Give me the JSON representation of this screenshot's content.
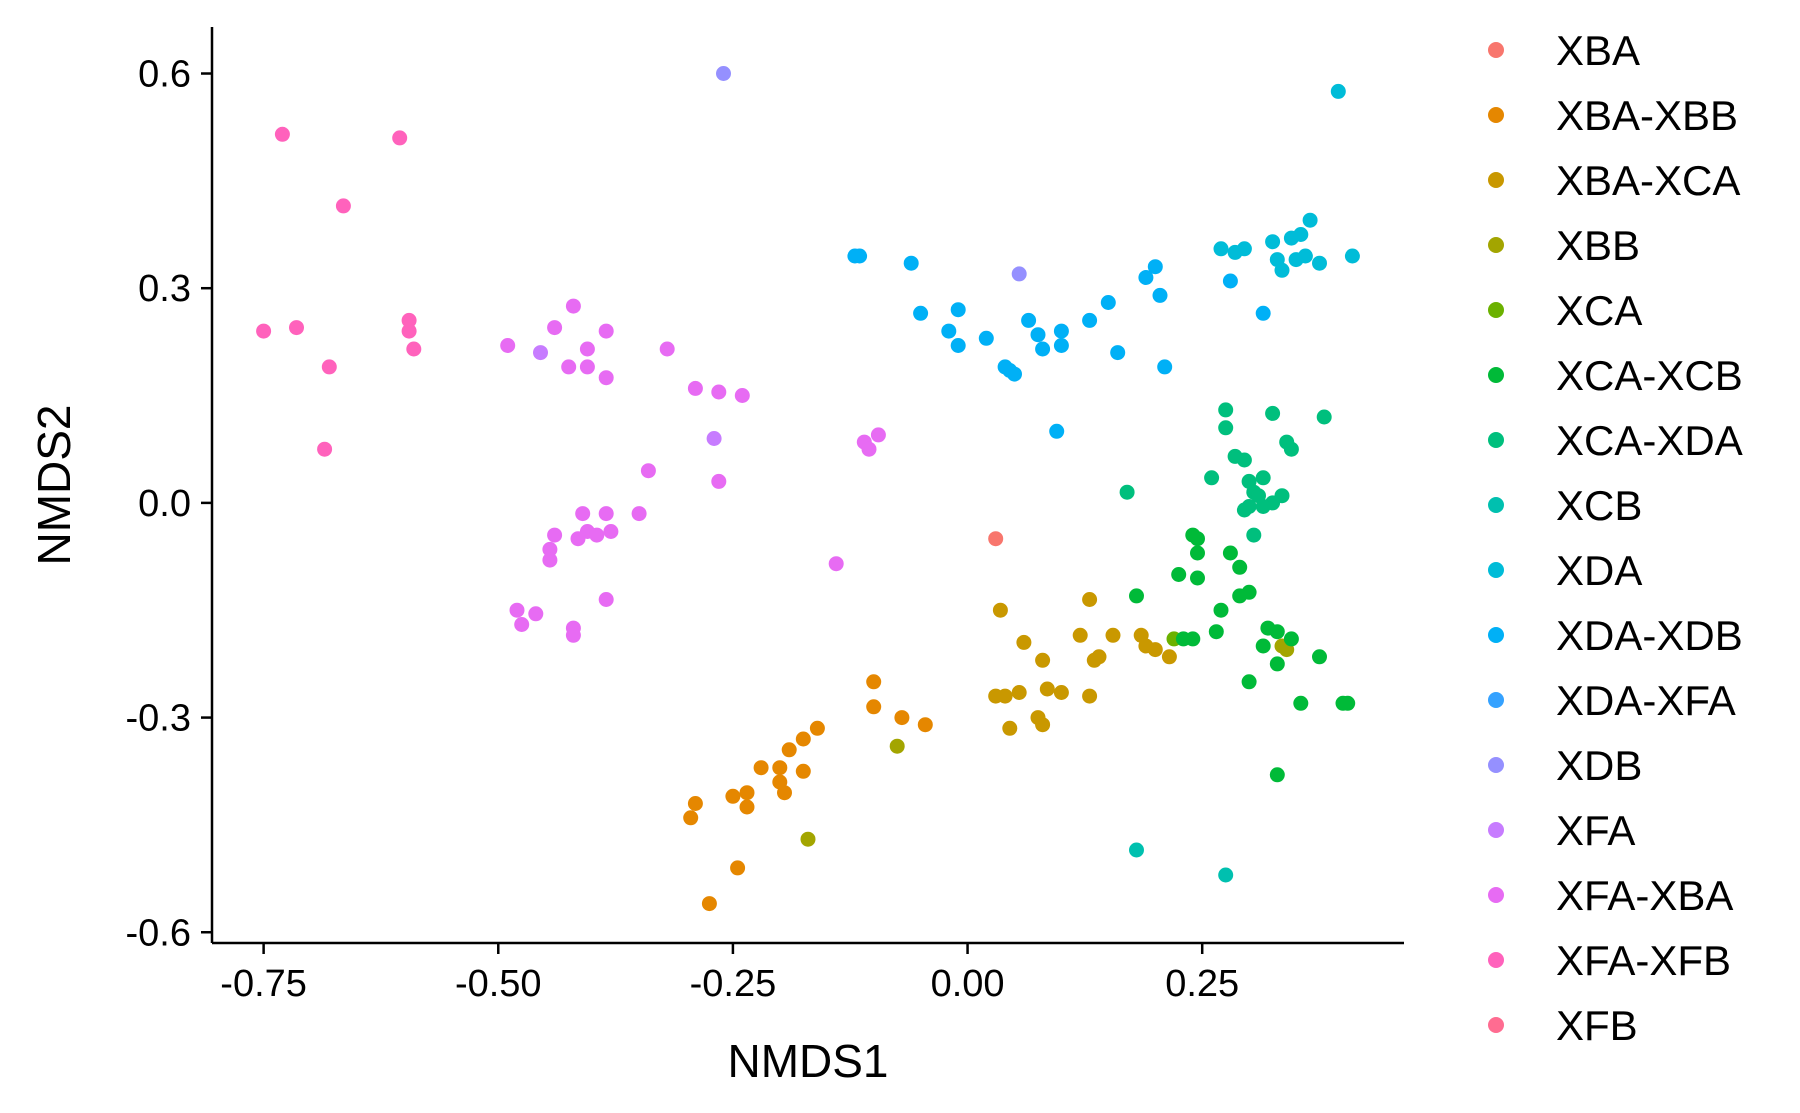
{
  "chart_data": {
    "type": "scatter",
    "title": "",
    "xlabel": "NMDS1",
    "ylabel": "NMDS2",
    "xlim": [
      -0.805,
      0.465
    ],
    "ylim": [
      -0.615,
      0.665
    ],
    "xticks": [
      -0.75,
      -0.5,
      -0.25,
      0.0,
      0.25
    ],
    "xtick_labels": [
      "-0.75",
      "-0.50",
      "-0.25",
      "0.00",
      "0.25"
    ],
    "yticks": [
      -0.6,
      -0.3,
      0.0,
      0.3,
      0.6
    ],
    "ytick_labels": [
      "-0.6",
      "-0.3",
      "0.0",
      "0.3",
      "0.6"
    ],
    "grid": false,
    "legend_position": "right",
    "series": [
      {
        "name": "XBA",
        "color": "#F8766D",
        "points": [
          [
            0.03,
            -0.05
          ]
        ]
      },
      {
        "name": "XBA-XBB",
        "color": "#E58700",
        "points": [
          [
            -0.1,
            -0.25
          ],
          [
            -0.1,
            -0.285
          ],
          [
            -0.07,
            -0.3
          ],
          [
            -0.045,
            -0.31
          ],
          [
            -0.16,
            -0.315
          ],
          [
            -0.175,
            -0.33
          ],
          [
            -0.19,
            -0.345
          ],
          [
            -0.2,
            -0.37
          ],
          [
            -0.22,
            -0.37
          ],
          [
            -0.175,
            -0.375
          ],
          [
            -0.2,
            -0.39
          ],
          [
            -0.235,
            -0.405
          ],
          [
            -0.195,
            -0.405
          ],
          [
            -0.25,
            -0.41
          ],
          [
            -0.29,
            -0.42
          ],
          [
            -0.235,
            -0.425
          ],
          [
            -0.295,
            -0.44
          ],
          [
            -0.245,
            -0.51
          ],
          [
            -0.275,
            -0.56
          ]
        ]
      },
      {
        "name": "XBA-XCA",
        "color": "#C99800",
        "points": [
          [
            0.035,
            -0.15
          ],
          [
            0.13,
            -0.135
          ],
          [
            0.06,
            -0.195
          ],
          [
            0.12,
            -0.185
          ],
          [
            0.155,
            -0.185
          ],
          [
            0.185,
            -0.185
          ],
          [
            0.2,
            -0.205
          ],
          [
            0.19,
            -0.2
          ],
          [
            0.14,
            -0.215
          ],
          [
            0.215,
            -0.215
          ],
          [
            0.08,
            -0.22
          ],
          [
            0.135,
            -0.22
          ],
          [
            0.085,
            -0.26
          ],
          [
            0.1,
            -0.265
          ],
          [
            0.03,
            -0.27
          ],
          [
            0.04,
            -0.27
          ],
          [
            0.055,
            -0.265
          ],
          [
            0.13,
            -0.27
          ],
          [
            0.075,
            -0.3
          ],
          [
            0.08,
            -0.31
          ],
          [
            0.045,
            -0.315
          ]
        ]
      },
      {
        "name": "XBB",
        "color": "#A3A500",
        "points": [
          [
            -0.075,
            -0.34
          ],
          [
            -0.17,
            -0.47
          ],
          [
            0.335,
            -0.2
          ],
          [
            0.34,
            -0.205
          ]
        ]
      },
      {
        "name": "XCA",
        "color": "#6BB100",
        "points": [
          [
            0.22,
            -0.19
          ]
        ]
      },
      {
        "name": "XCA-XCB",
        "color": "#00BA38",
        "points": [
          [
            0.24,
            -0.045
          ],
          [
            0.245,
            -0.07
          ],
          [
            0.245,
            -0.05
          ],
          [
            0.28,
            -0.07
          ],
          [
            0.225,
            -0.1
          ],
          [
            0.245,
            -0.105
          ],
          [
            0.29,
            -0.09
          ],
          [
            0.3,
            -0.125
          ],
          [
            0.29,
            -0.13
          ],
          [
            0.18,
            -0.13
          ],
          [
            0.27,
            -0.15
          ],
          [
            0.32,
            -0.175
          ],
          [
            0.33,
            -0.18
          ],
          [
            0.265,
            -0.18
          ],
          [
            0.24,
            -0.19
          ],
          [
            0.23,
            -0.19
          ],
          [
            0.345,
            -0.19
          ],
          [
            0.315,
            -0.2
          ],
          [
            0.375,
            -0.215
          ],
          [
            0.33,
            -0.225
          ],
          [
            0.3,
            -0.25
          ],
          [
            0.355,
            -0.28
          ],
          [
            0.4,
            -0.28
          ],
          [
            0.405,
            -0.28
          ],
          [
            0.33,
            -0.38
          ]
        ]
      },
      {
        "name": "XCA-XDA",
        "color": "#00BF7D",
        "points": [
          [
            0.275,
            0.13
          ],
          [
            0.325,
            0.125
          ],
          [
            0.38,
            0.12
          ],
          [
            0.275,
            0.105
          ],
          [
            0.34,
            0.085
          ],
          [
            0.345,
            0.075
          ],
          [
            0.285,
            0.065
          ],
          [
            0.295,
            0.06
          ],
          [
            0.26,
            0.035
          ],
          [
            0.315,
            0.035
          ],
          [
            0.3,
            0.03
          ],
          [
            0.17,
            0.015
          ],
          [
            0.305,
            0.015
          ],
          [
            0.31,
            0.01
          ],
          [
            0.335,
            0.01
          ],
          [
            0.325,
            0.0
          ],
          [
            0.3,
            -0.005
          ],
          [
            0.295,
            -0.01
          ],
          [
            0.315,
            -0.005
          ],
          [
            0.305,
            -0.045
          ]
        ]
      },
      {
        "name": "XCB",
        "color": "#00C0AF",
        "points": [
          [
            0.18,
            -0.485
          ],
          [
            0.275,
            -0.52
          ]
        ]
      },
      {
        "name": "XDA",
        "color": "#00BCD8",
        "points": [
          [
            0.27,
            0.355
          ],
          [
            0.285,
            0.35
          ],
          [
            0.295,
            0.355
          ],
          [
            0.325,
            0.365
          ],
          [
            0.345,
            0.37
          ],
          [
            0.355,
            0.375
          ],
          [
            0.365,
            0.395
          ],
          [
            0.33,
            0.34
          ],
          [
            0.35,
            0.34
          ],
          [
            0.36,
            0.345
          ],
          [
            0.375,
            0.335
          ],
          [
            0.335,
            0.325
          ],
          [
            0.41,
            0.345
          ],
          [
            0.395,
            0.575
          ]
        ]
      },
      {
        "name": "XDA-XDB",
        "color": "#00B0F6",
        "points": [
          [
            -0.12,
            0.345
          ],
          [
            -0.115,
            0.345
          ],
          [
            -0.06,
            0.335
          ],
          [
            0.2,
            0.33
          ],
          [
            0.19,
            0.315
          ],
          [
            0.28,
            0.31
          ],
          [
            -0.05,
            0.265
          ],
          [
            -0.01,
            0.27
          ],
          [
            0.065,
            0.255
          ],
          [
            0.205,
            0.29
          ],
          [
            0.15,
            0.28
          ],
          [
            0.13,
            0.255
          ],
          [
            0.315,
            0.265
          ],
          [
            0.075,
            0.235
          ],
          [
            0.1,
            0.24
          ],
          [
            -0.02,
            0.24
          ],
          [
            0.02,
            0.23
          ],
          [
            -0.01,
            0.22
          ],
          [
            0.1,
            0.22
          ],
          [
            0.16,
            0.21
          ],
          [
            0.08,
            0.215
          ],
          [
            0.04,
            0.19
          ],
          [
            0.045,
            0.185
          ],
          [
            0.05,
            0.18
          ],
          [
            0.21,
            0.19
          ],
          [
            0.095,
            0.1
          ]
        ]
      },
      {
        "name": "XDA-XFA",
        "color": "#35A2FF",
        "points": []
      },
      {
        "name": "XDB",
        "color": "#9590FF",
        "points": [
          [
            -0.26,
            0.6
          ],
          [
            0.055,
            0.32
          ]
        ]
      },
      {
        "name": "XFA",
        "color": "#C77CFF",
        "points": [
          [
            -0.455,
            0.21
          ],
          [
            -0.27,
            0.09
          ]
        ]
      },
      {
        "name": "XFA-XBA",
        "color": "#E76BF3",
        "points": [
          [
            -0.42,
            0.275
          ],
          [
            -0.44,
            0.245
          ],
          [
            -0.385,
            0.24
          ],
          [
            -0.405,
            0.215
          ],
          [
            -0.49,
            0.22
          ],
          [
            -0.425,
            0.19
          ],
          [
            -0.405,
            0.19
          ],
          [
            -0.385,
            0.175
          ],
          [
            -0.32,
            0.215
          ],
          [
            -0.29,
            0.16
          ],
          [
            -0.265,
            0.155
          ],
          [
            -0.24,
            0.15
          ],
          [
            -0.34,
            0.045
          ],
          [
            -0.265,
            0.03
          ],
          [
            -0.11,
            0.085
          ],
          [
            -0.105,
            0.075
          ],
          [
            -0.095,
            0.095
          ],
          [
            -0.41,
            -0.015
          ],
          [
            -0.385,
            -0.015
          ],
          [
            -0.35,
            -0.015
          ],
          [
            -0.405,
            -0.04
          ],
          [
            -0.38,
            -0.04
          ],
          [
            -0.395,
            -0.045
          ],
          [
            -0.44,
            -0.045
          ],
          [
            -0.445,
            -0.065
          ],
          [
            -0.415,
            -0.05
          ],
          [
            -0.445,
            -0.08
          ],
          [
            -0.14,
            -0.085
          ],
          [
            -0.385,
            -0.135
          ],
          [
            -0.48,
            -0.15
          ],
          [
            -0.46,
            -0.155
          ],
          [
            -0.475,
            -0.17
          ],
          [
            -0.42,
            -0.175
          ],
          [
            -0.42,
            -0.185
          ]
        ]
      },
      {
        "name": "XFA-XFB",
        "color": "#FF62BC",
        "points": [
          [
            -0.73,
            0.515
          ],
          [
            -0.605,
            0.51
          ],
          [
            -0.665,
            0.415
          ],
          [
            -0.595,
            0.255
          ],
          [
            -0.715,
            0.245
          ],
          [
            -0.75,
            0.24
          ],
          [
            -0.595,
            0.24
          ],
          [
            -0.59,
            0.215
          ],
          [
            -0.68,
            0.19
          ],
          [
            -0.685,
            0.075
          ]
        ]
      },
      {
        "name": "XFB",
        "color": "#FF6C91",
        "points": []
      }
    ]
  }
}
